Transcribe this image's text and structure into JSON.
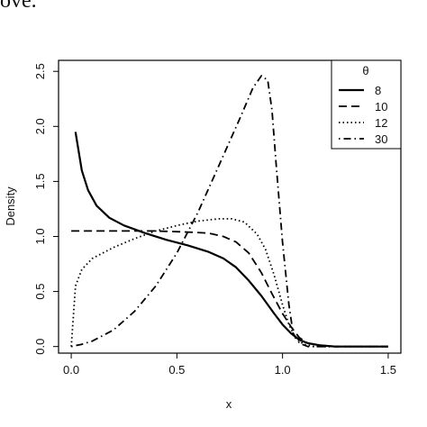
{
  "header_fragment": "ove.",
  "chart_data": {
    "type": "line",
    "xlabel": "x",
    "ylabel": "Density",
    "xlim": [
      -0.06,
      1.56
    ],
    "ylim": [
      -0.06,
      2.6
    ],
    "x_ticks": [
      "0.0",
      "0.5",
      "1.0",
      "1.5"
    ],
    "x_tick_values": [
      0,
      0.5,
      1.0,
      1.5
    ],
    "y_ticks": [
      "0.0",
      "0.5",
      "1.0",
      "1.5",
      "2.0",
      "2.5"
    ],
    "y_tick_values": [
      0,
      0.5,
      1.0,
      1.5,
      2.0,
      2.5
    ],
    "grid": false,
    "legend": {
      "title": "θ",
      "placement": "top-right"
    },
    "series": [
      {
        "name": "8",
        "line_style": "solid",
        "x": [
          0.02,
          0.05,
          0.08,
          0.12,
          0.18,
          0.25,
          0.35,
          0.45,
          0.55,
          0.65,
          0.72,
          0.78,
          0.84,
          0.9,
          0.96,
          1.0,
          1.04,
          1.08,
          1.12,
          1.18,
          1.25,
          1.35,
          1.5
        ],
        "y": [
          1.95,
          1.6,
          1.42,
          1.28,
          1.17,
          1.1,
          1.03,
          0.97,
          0.92,
          0.86,
          0.8,
          0.72,
          0.6,
          0.46,
          0.3,
          0.2,
          0.12,
          0.06,
          0.03,
          0.01,
          0.0,
          0.0,
          0.0
        ]
      },
      {
        "name": "10",
        "line_style": "dashed",
        "x": [
          0.0,
          0.2,
          0.4,
          0.55,
          0.65,
          0.72,
          0.78,
          0.84,
          0.9,
          0.95,
          1.0,
          1.04,
          1.08,
          1.12,
          1.18,
          1.25,
          1.35,
          1.5
        ],
        "y": [
          1.05,
          1.05,
          1.05,
          1.04,
          1.03,
          1.0,
          0.95,
          0.85,
          0.67,
          0.48,
          0.3,
          0.18,
          0.08,
          0.03,
          0.01,
          0.0,
          0.0,
          0.0
        ]
      },
      {
        "name": "12",
        "line_style": "dotted",
        "x": [
          0.0,
          0.02,
          0.05,
          0.1,
          0.2,
          0.3,
          0.4,
          0.5,
          0.6,
          0.7,
          0.76,
          0.82,
          0.88,
          0.92,
          0.96,
          1.0,
          1.03,
          1.06,
          1.1,
          1.15,
          1.25,
          1.5
        ],
        "y": [
          0.0,
          0.55,
          0.7,
          0.8,
          0.9,
          0.98,
          1.05,
          1.1,
          1.14,
          1.16,
          1.16,
          1.13,
          1.02,
          0.88,
          0.65,
          0.38,
          0.2,
          0.08,
          0.02,
          0.0,
          0.0,
          0.0
        ]
      },
      {
        "name": "30",
        "line_style": "dashdot",
        "x": [
          0.0,
          0.05,
          0.1,
          0.2,
          0.3,
          0.4,
          0.5,
          0.6,
          0.7,
          0.8,
          0.86,
          0.9,
          0.93,
          0.95,
          0.97,
          1.0,
          1.03,
          1.05,
          1.08,
          1.12,
          1.2,
          1.5
        ],
        "y": [
          0.0,
          0.02,
          0.05,
          0.15,
          0.32,
          0.55,
          0.85,
          1.22,
          1.65,
          2.08,
          2.35,
          2.46,
          2.42,
          2.15,
          1.65,
          0.95,
          0.38,
          0.12,
          0.03,
          0.0,
          0.0,
          0.0
        ]
      }
    ]
  }
}
